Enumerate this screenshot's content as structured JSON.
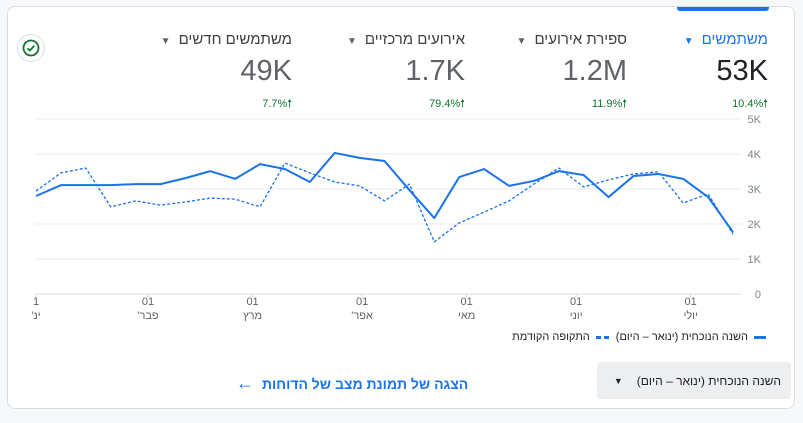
{
  "metrics": [
    {
      "label": "משתמשים",
      "value": "53K",
      "change": "10.4%",
      "active": true
    },
    {
      "label": "ספירת אירועים",
      "value": "1.2M",
      "change": "11.9%"
    },
    {
      "label": "אירועים מרכזיים",
      "value": "1.7K",
      "change": "79.4%"
    },
    {
      "label": "משתמשים חדשים",
      "value": "49K",
      "change": "7.7%"
    }
  ],
  "legend": {
    "current": "השנה הנוכחית (ינואר – היום)",
    "previous": "התקופה הקודמת"
  },
  "date_range": "השנה הנוכחית (ינואר – היום)",
  "link": "הצגה של תמונת מצב של הדוחות",
  "colors": {
    "accent": "#1a73e8",
    "positive": "#137333"
  },
  "chart_data": {
    "type": "line",
    "yticks": [
      "0",
      "1K",
      "2K",
      "3K",
      "4K",
      "5K"
    ],
    "ylim": [
      0,
      5
    ],
    "yunit": "K",
    "xticks": [
      {
        "i": 0,
        "day": "1",
        "month": "ינ'"
      },
      {
        "i": 4.5,
        "day": "01",
        "month": "פבר'"
      },
      {
        "i": 8.7,
        "day": "01",
        "month": "מרץ"
      },
      {
        "i": 13.1,
        "day": "01",
        "month": "אפר'"
      },
      {
        "i": 17.3,
        "day": "01",
        "month": "מאי"
      },
      {
        "i": 21.7,
        "day": "01",
        "month": "יוני"
      },
      {
        "i": 26.3,
        "day": "01",
        "month": "יולי"
      }
    ],
    "series": [
      {
        "name": "השנה הנוכחית (ינואר – היום)",
        "style": "solid",
        "values": [
          2.8,
          3.11,
          3.11,
          3.11,
          3.14,
          3.14,
          3.31,
          3.51,
          3.29,
          3.71,
          3.57,
          3.2,
          4.03,
          3.89,
          3.8,
          2.97,
          2.17,
          3.34,
          3.57,
          3.09,
          3.23,
          3.51,
          3.4,
          2.77,
          3.37,
          3.43,
          3.29,
          2.77,
          1.77
        ]
      },
      {
        "name": "התקופה הקודמת",
        "style": "dashed",
        "values": [
          2.94,
          3.46,
          3.6,
          2.49,
          2.66,
          2.54,
          2.63,
          2.74,
          2.71,
          2.49,
          3.74,
          3.46,
          3.2,
          3.09,
          2.66,
          3.14,
          1.49,
          2.03,
          2.34,
          2.66,
          3.14,
          3.6,
          3.06,
          3.26,
          3.43,
          3.49,
          2.6,
          2.86,
          1.71
        ]
      }
    ]
  }
}
